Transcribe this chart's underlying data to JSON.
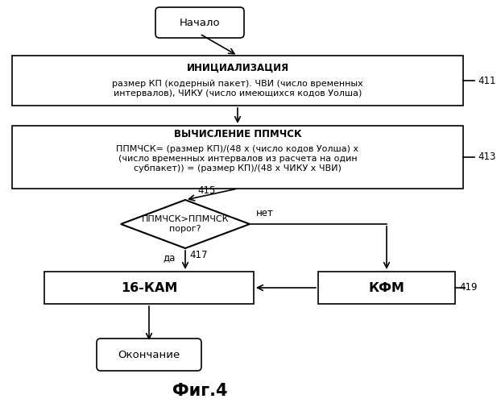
{
  "bg_color": "#ffffff",
  "title": "Фиг.4",
  "start_label": "Начало",
  "end_label": "Окончание",
  "box1_title": "ИНИЦИАЛИЗАЦИЯ",
  "box1_text": "размер КП (кодерный пакет). ЧВИ (число временных\nинтервалов), ЧИКУ (число имеющихся кодов Уолша)",
  "box1_label": "411",
  "box2_title": "ВЫЧИСЛЕНИЕ ППМЧСК",
  "box2_text": "ППМЧСК= (размер КП)/(48 х (число кодов Уолша) х\n(число временных интервалов из расчета на один\nсубпакет)) = (размер КП)/(48 х ЧИКУ х ЧВИ)",
  "box2_label": "413",
  "diamond_text": "ППМЧСК>ППМЧСК\nпорог?",
  "diamond_label": "415",
  "yes_label": "да",
  "yes_arrow_label": "417",
  "no_label": "нет",
  "box3_text": "16-КАМ",
  "box3_label": "417",
  "box4_text": "КФМ",
  "box4_label": "419",
  "line_color": "#000000",
  "fill_color": "#ffffff",
  "text_color": "#000000",
  "font_size": 8.5,
  "title_font_size": 15
}
